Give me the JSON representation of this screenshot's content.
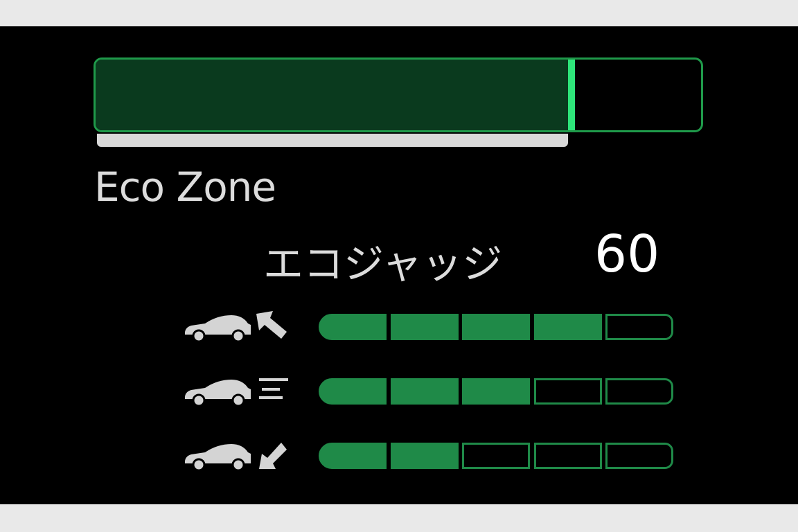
{
  "eco_gauge": {
    "label": "Eco Zone",
    "level_percent": 78,
    "colors": {
      "fill": "#0a3a1e",
      "marker": "#2ee57a",
      "border": "#1f9a4a"
    }
  },
  "eco_judge": {
    "label": "エコジャッジ",
    "score": "60"
  },
  "ratings": [
    {
      "icon": "car-start-acceleration-icon",
      "filled": 4,
      "total": 5
    },
    {
      "icon": "car-cruising-icon",
      "filled": 3,
      "total": 5
    },
    {
      "icon": "car-deceleration-icon",
      "filled": 2,
      "total": 5
    }
  ],
  "segment_color": "#1f8a48"
}
